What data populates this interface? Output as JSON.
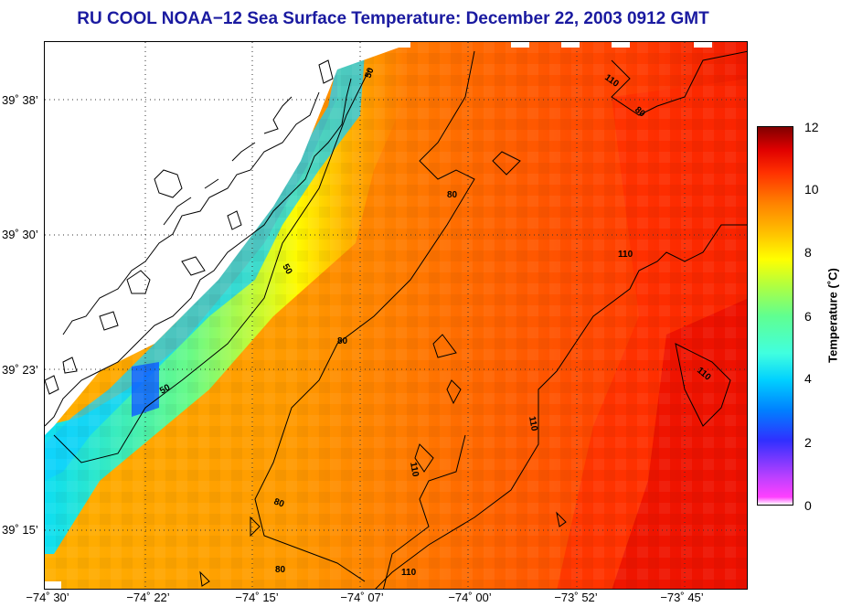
{
  "title": "RU COOL  NOAA−12  Sea Surface Temperature:  December 22, 2003 0912 GMT",
  "lat_labels": [
    "39˚ 38’",
    "39˚ 30’",
    "39˚ 23’",
    "39˚ 15’"
  ],
  "lon_labels": [
    "−74˚ 30’",
    "−74˚ 22’",
    "−74˚ 15’",
    "−74˚ 07’",
    "−74˚ 00’",
    "−73˚ 52’",
    "−73˚ 45’"
  ],
  "colorbar": {
    "label": "Temperature (˚C)",
    "ticks": [
      "12",
      "10",
      "8",
      "6",
      "4",
      "2",
      "0"
    ],
    "min": 0,
    "max": 12
  },
  "contour_labels": [
    "50",
    "50",
    "50",
    "80",
    "80",
    "80",
    "80",
    "110",
    "110",
    "110",
    "110",
    "110",
    "110",
    "80"
  ],
  "colors": {
    "title": "#1a1aa0",
    "land": "#ffffff",
    "coastline": "#000000"
  }
}
